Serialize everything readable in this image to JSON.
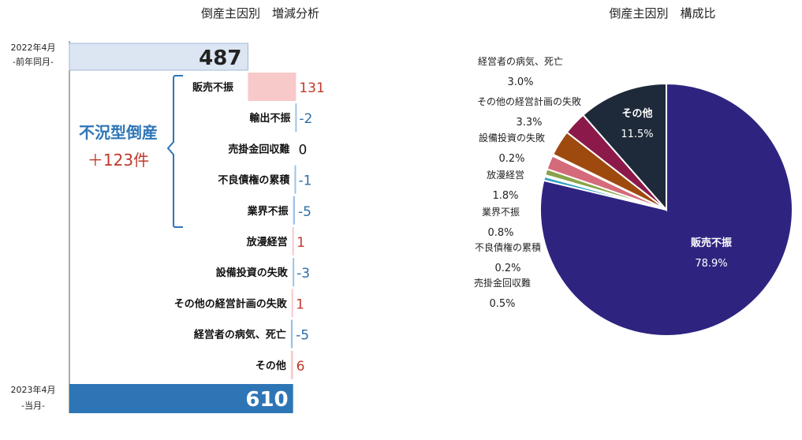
{
  "chart_data": [
    {
      "type": "bar",
      "title": "倒産主因別　増減分析",
      "start": {
        "label": "2022年4月",
        "sublabel": "-前年同月-",
        "value": 487
      },
      "end": {
        "label": "2023年4月",
        "sublabel": "-当月-",
        "value": 610
      },
      "bracket": {
        "label": "不況型倒産",
        "change": "＋123件"
      },
      "categories": [
        "販売不振",
        "輸出不振",
        "売掛金回収難",
        "不良債権の累積",
        "業界不振",
        "放漫経営",
        "設備投資の失敗",
        "その他の経営計画の失敗",
        "経営者の病気、死亡",
        "その他"
      ],
      "values": [
        131,
        -2,
        0,
        -1,
        -5,
        1,
        -3,
        1,
        -5,
        6
      ],
      "value_labels": [
        "131",
        "-2",
        "0",
        "-1",
        "-5",
        "1",
        "-3",
        "1",
        "-5",
        "6"
      ],
      "colors": {
        "start": "#dce6f2",
        "end": "#2e75b6",
        "positive": "#f8c9c9",
        "negative": "#9dc3e6",
        "positive_text": "#c0392b",
        "negative_text": "#2e6da4",
        "bracket": "#2e75b6"
      }
    },
    {
      "type": "pie",
      "title": "倒産主因別　構成比",
      "slices": [
        {
          "label": "販売不振",
          "value": 78.9,
          "value_label": "78.9%",
          "color": "#2e2480"
        },
        {
          "label": "売掛金回収難",
          "value": 0.5,
          "value_label": "0.5%",
          "color": "#2f9ec4"
        },
        {
          "label": "不良債権の累積",
          "value": 0.2,
          "value_label": "0.2%",
          "color": "#7fb8e0"
        },
        {
          "label": "業界不振",
          "value": 0.8,
          "value_label": "0.8%",
          "color": "#8aa34a"
        },
        {
          "label": "放漫経営",
          "value": 1.8,
          "value_label": "1.8%",
          "color": "#d46a7a"
        },
        {
          "label": "設備投資の失敗",
          "value": 0.2,
          "value_label": "0.2%",
          "color": "#e8a070"
        },
        {
          "label": "その他の経営計画の失敗",
          "value": 3.3,
          "value_label": "3.3%",
          "color": "#9e4a0e"
        },
        {
          "label": "経営者の病気、死亡",
          "value": 3.0,
          "value_label": "3.0%",
          "color": "#8b1a4a"
        },
        {
          "label": "その他",
          "value": 11.5,
          "value_label": "11.5%",
          "color": "#1e2a3a"
        }
      ]
    }
  ]
}
